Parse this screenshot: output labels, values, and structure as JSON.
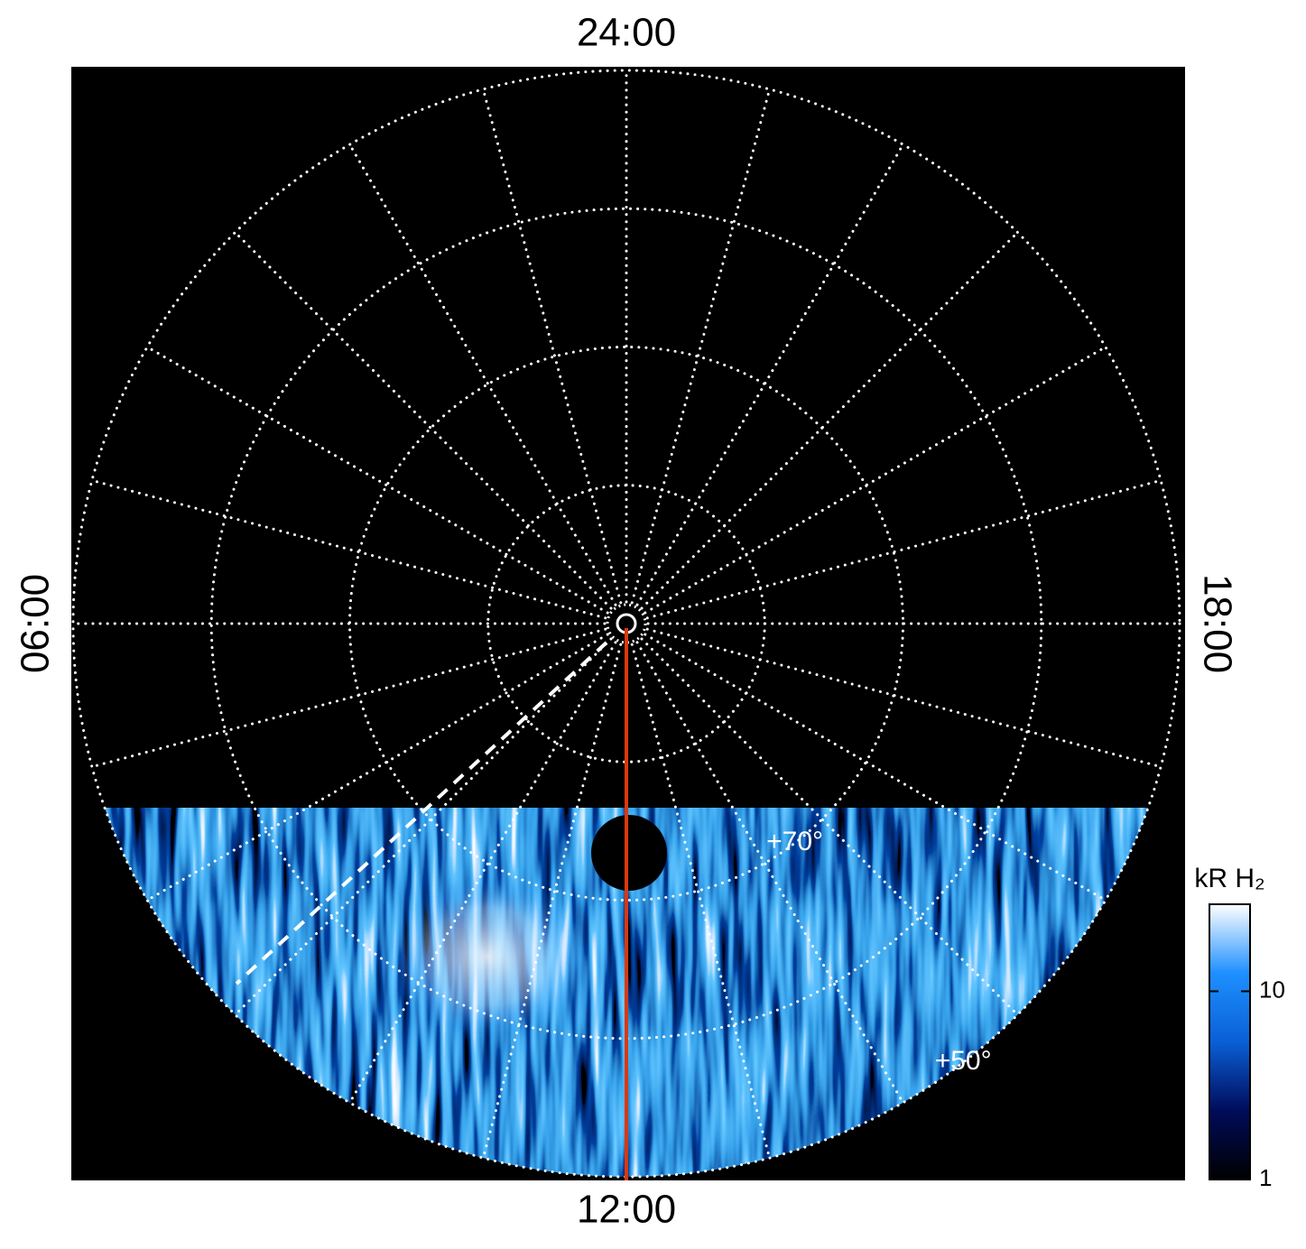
{
  "chart_data": {
    "type": "polar",
    "hour_labels": [
      {
        "value": 24,
        "label": "24:00"
      },
      {
        "value": 6,
        "label": "06:00"
      },
      {
        "value": 12,
        "label": "12:00"
      },
      {
        "value": 18,
        "label": "18:00"
      }
    ],
    "lat_lim": [
      90,
      50
    ],
    "lat_circles": [
      80,
      70,
      60,
      50
    ],
    "lat_labels": [
      {
        "value": 70,
        "label": "+70°"
      },
      {
        "value": 50,
        "label": "+50°"
      }
    ],
    "meridian_hours": [
      0,
      1,
      2,
      3,
      4,
      5,
      6,
      7,
      8,
      9,
      10,
      11,
      12,
      13,
      14,
      15,
      16,
      17,
      18,
      19,
      20,
      21,
      22,
      23
    ],
    "grid": true,
    "grid_color": "#ffffff",
    "colorbar": {
      "label": "kR H₂",
      "scale": "log",
      "lim": [
        1,
        29
      ],
      "ticks": [
        1,
        10
      ],
      "colors": [
        "#000000",
        "#000c5a",
        "#0a5fd6",
        "#1e90ff",
        "#ffffff"
      ]
    }
  }
}
